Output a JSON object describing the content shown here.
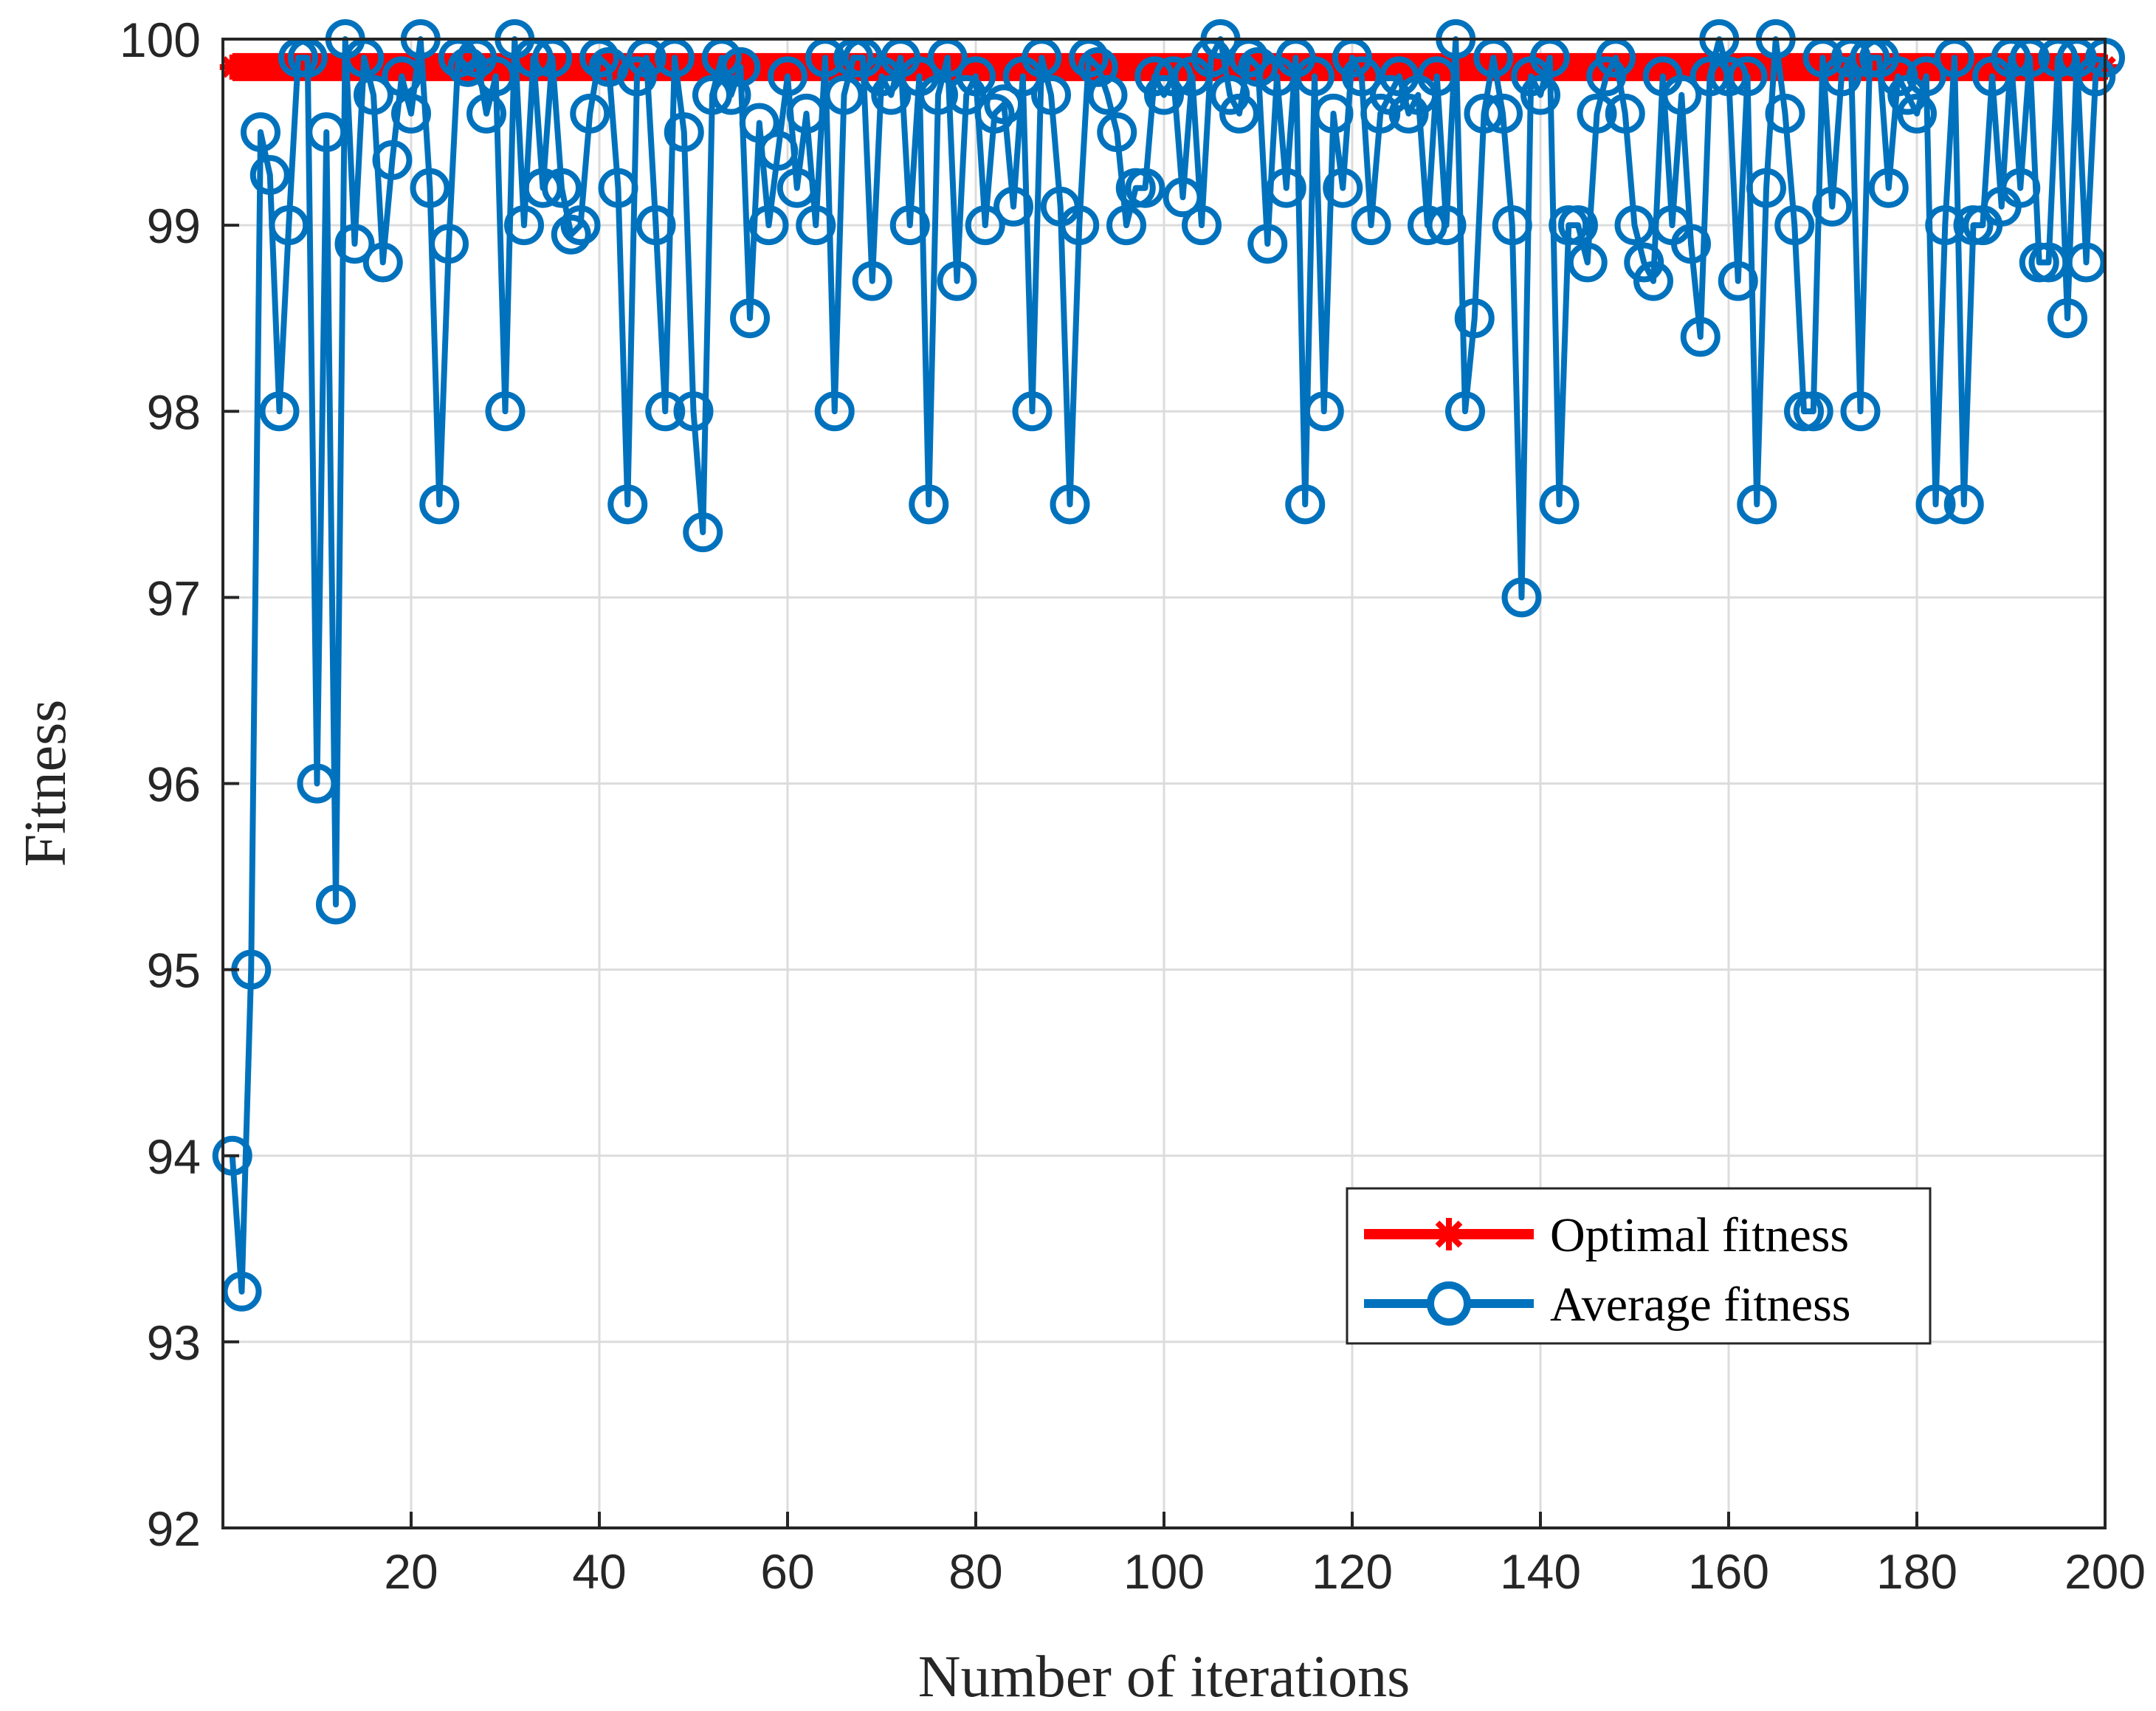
{
  "chart_data": {
    "type": "line",
    "title": "",
    "xlabel": "Number of iterations",
    "ylabel": "Fitness",
    "xlim": [
      0,
      200
    ],
    "ylim": [
      92,
      100
    ],
    "xticks": [
      20,
      40,
      60,
      80,
      100,
      120,
      140,
      160,
      180,
      200
    ],
    "yticks": [
      92,
      93,
      94,
      95,
      96,
      97,
      98,
      99,
      100
    ],
    "grid": true,
    "legend_position": "bottom-right",
    "series": [
      {
        "name": "Optimal fitness",
        "color": "#ff0000",
        "marker": "asterisk",
        "x_start": 1,
        "x_end": 200,
        "constant_value": 99.85
      },
      {
        "name": "Average fitness",
        "color": "#0072bd",
        "marker": "circle",
        "x_start": 1,
        "values": [
          94,
          93.27,
          95,
          99.5,
          99.27,
          98,
          99,
          99.9,
          99.9,
          96,
          99.5,
          95.35,
          100,
          98.9,
          99.9,
          99.7,
          98.8,
          99.35,
          99.8,
          99.6,
          100,
          99.2,
          97.5,
          98.9,
          99.9,
          99.85,
          99.9,
          99.6,
          99.8,
          98,
          100,
          99,
          99.9,
          99.2,
          99.9,
          99.2,
          98.95,
          99,
          99.6,
          99.9,
          99.85,
          99.2,
          97.5,
          99.8,
          99.9,
          99,
          98,
          99.9,
          99.5,
          98,
          97.35,
          99.7,
          99.9,
          99.7,
          99.85,
          98.5,
          99.55,
          99,
          99.4,
          99.8,
          99.2,
          99.6,
          99,
          99.9,
          98,
          99.7,
          99.9,
          99.9,
          98.7,
          99.8,
          99.7,
          99.9,
          99,
          99.8,
          97.5,
          99.7,
          99.9,
          98.7,
          99.7,
          99.8,
          99,
          99.6,
          99.65,
          99.1,
          99.8,
          98,
          99.9,
          99.7,
          99.1,
          97.5,
          99,
          99.9,
          99.85,
          99.7,
          99.5,
          99,
          99.2,
          99.2,
          99.8,
          99.7,
          99.8,
          99.15,
          99.8,
          99,
          99.9,
          100,
          99.7,
          99.6,
          99.9,
          99.85,
          98.9,
          99.8,
          99.2,
          99.9,
          97.5,
          99.8,
          98,
          99.6,
          99.2,
          99.9,
          99.8,
          99,
          99.6,
          99.7,
          99.8,
          99.6,
          99.7,
          99,
          99.8,
          99,
          100,
          98,
          98.5,
          99.6,
          99.9,
          99.6,
          99,
          97,
          99.8,
          99.7,
          99.9,
          97.5,
          99,
          99,
          98.8,
          99.6,
          99.8,
          99.9,
          99.6,
          99,
          98.8,
          98.7,
          99.8,
          99,
          99.7,
          98.9,
          98.4,
          99.8,
          100,
          99.8,
          98.7,
          99.8,
          97.5,
          99.2,
          100,
          99.6,
          99,
          98,
          98,
          99.9,
          99.1,
          99.8,
          99.9,
          98,
          99.9,
          99.9,
          99.2,
          99.8,
          99.7,
          99.6,
          99.8,
          97.5,
          99,
          99.9,
          97.5,
          99,
          99,
          99.8,
          99.1,
          99.9,
          99.2,
          99.9,
          98.8,
          98.8,
          99.9,
          98.5,
          99.9,
          98.8,
          99.8,
          99.9
        ]
      }
    ]
  }
}
